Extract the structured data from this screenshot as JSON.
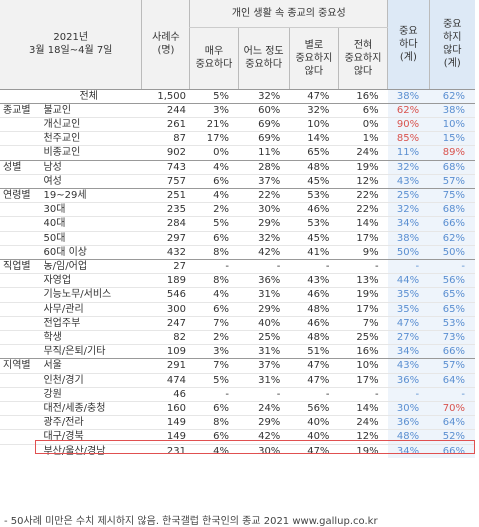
{
  "header": {
    "period": "2021년\n3월 18일~4월 7일",
    "sample": "사례수\n(명)",
    "group_title": "개인 생활 속 종교의 중요성",
    "cols": [
      "매우\n중요하다",
      "어느 정도\n중요하다",
      "별로\n중요하지\n않다",
      "전혀\n중요하지\n않다"
    ],
    "important": "중요\n하다\n(계)",
    "not_important": "중요\n하지\n않다\n(계)"
  },
  "sections": [
    {
      "label": "",
      "rows": [
        {
          "name": "전체",
          "n": "1,500",
          "v": [
            "5%",
            "32%",
            "47%",
            "16%"
          ],
          "imp": "38%",
          "nimp": "62%"
        }
      ]
    },
    {
      "label": "종교별",
      "rows": [
        {
          "name": "불교인",
          "n": "244",
          "v": [
            "3%",
            "60%",
            "32%",
            "6%"
          ],
          "imp": "62%",
          "nimp": "38%",
          "hot": "imp"
        },
        {
          "name": "개신교인",
          "n": "261",
          "v": [
            "21%",
            "69%",
            "10%",
            "0%"
          ],
          "imp": "90%",
          "nimp": "10%",
          "hot": "imp"
        },
        {
          "name": "천주교인",
          "n": "87",
          "v": [
            "17%",
            "69%",
            "14%",
            "1%"
          ],
          "imp": "85%",
          "nimp": "15%",
          "hot": "imp"
        },
        {
          "name": "비종교인",
          "n": "902",
          "v": [
            "0%",
            "11%",
            "65%",
            "24%"
          ],
          "imp": "11%",
          "nimp": "89%",
          "hot": "nimp"
        }
      ]
    },
    {
      "label": "성별",
      "rows": [
        {
          "name": "남성",
          "n": "743",
          "v": [
            "4%",
            "28%",
            "48%",
            "19%"
          ],
          "imp": "32%",
          "nimp": "68%"
        },
        {
          "name": "여성",
          "n": "757",
          "v": [
            "6%",
            "37%",
            "45%",
            "12%"
          ],
          "imp": "43%",
          "nimp": "57%"
        }
      ]
    },
    {
      "label": "연령별",
      "rows": [
        {
          "name": "19~29세",
          "n": "251",
          "v": [
            "4%",
            "22%",
            "53%",
            "22%"
          ],
          "imp": "25%",
          "nimp": "75%"
        },
        {
          "name": "30대",
          "n": "235",
          "v": [
            "2%",
            "30%",
            "46%",
            "22%"
          ],
          "imp": "32%",
          "nimp": "68%"
        },
        {
          "name": "40대",
          "n": "284",
          "v": [
            "5%",
            "29%",
            "53%",
            "14%"
          ],
          "imp": "34%",
          "nimp": "66%"
        },
        {
          "name": "50대",
          "n": "297",
          "v": [
            "6%",
            "32%",
            "45%",
            "17%"
          ],
          "imp": "38%",
          "nimp": "62%"
        },
        {
          "name": "60대 이상",
          "n": "432",
          "v": [
            "8%",
            "42%",
            "41%",
            "9%"
          ],
          "imp": "50%",
          "nimp": "50%"
        }
      ]
    },
    {
      "label": "직업별",
      "rows": [
        {
          "name": "농/임/어업",
          "n": "27",
          "v": [
            "-",
            "-",
            "-",
            "-"
          ],
          "imp": "-",
          "nimp": "-"
        },
        {
          "name": "자영업",
          "n": "189",
          "v": [
            "8%",
            "36%",
            "43%",
            "13%"
          ],
          "imp": "44%",
          "nimp": "56%"
        },
        {
          "name": "기능노무/서비스",
          "n": "546",
          "v": [
            "4%",
            "31%",
            "46%",
            "19%"
          ],
          "imp": "35%",
          "nimp": "65%"
        },
        {
          "name": "사무/관리",
          "n": "300",
          "v": [
            "6%",
            "29%",
            "48%",
            "17%"
          ],
          "imp": "35%",
          "nimp": "65%"
        },
        {
          "name": "전업주부",
          "n": "247",
          "v": [
            "7%",
            "40%",
            "46%",
            "7%"
          ],
          "imp": "47%",
          "nimp": "53%"
        },
        {
          "name": "학생",
          "n": "82",
          "v": [
            "2%",
            "25%",
            "48%",
            "25%"
          ],
          "imp": "27%",
          "nimp": "73%"
        },
        {
          "name": "무직/은퇴/기타",
          "n": "109",
          "v": [
            "3%",
            "31%",
            "51%",
            "16%"
          ],
          "imp": "34%",
          "nimp": "66%"
        }
      ]
    },
    {
      "label": "지역별",
      "rows": [
        {
          "name": "서울",
          "n": "291",
          "v": [
            "7%",
            "37%",
            "47%",
            "10%"
          ],
          "imp": "43%",
          "nimp": "57%"
        },
        {
          "name": "인천/경기",
          "n": "474",
          "v": [
            "5%",
            "31%",
            "47%",
            "17%"
          ],
          "imp": "36%",
          "nimp": "64%"
        },
        {
          "name": "강원",
          "n": "46",
          "v": [
            "-",
            "-",
            "-",
            "-"
          ],
          "imp": "-",
          "nimp": "-"
        },
        {
          "name": "대전/세종/충청",
          "n": "160",
          "v": [
            "6%",
            "24%",
            "56%",
            "14%"
          ],
          "imp": "30%",
          "nimp": "70%",
          "hot": "nimp"
        },
        {
          "name": "광주/전라",
          "n": "149",
          "v": [
            "8%",
            "29%",
            "40%",
            "24%"
          ],
          "imp": "36%",
          "nimp": "64%"
        },
        {
          "name": "대구/경북",
          "n": "149",
          "v": [
            "6%",
            "42%",
            "40%",
            "12%"
          ],
          "imp": "48%",
          "nimp": "52%"
        },
        {
          "name": "부산/울산/경남",
          "n": "231",
          "v": [
            "4%",
            "30%",
            "47%",
            "19%"
          ],
          "imp": "34%",
          "nimp": "66%"
        }
      ]
    }
  ],
  "footer": "- 50사례 미만은 수치 제시하지 않음. 한국갤럽 한국인의 종교 2021 www.gallup.co.kr"
}
